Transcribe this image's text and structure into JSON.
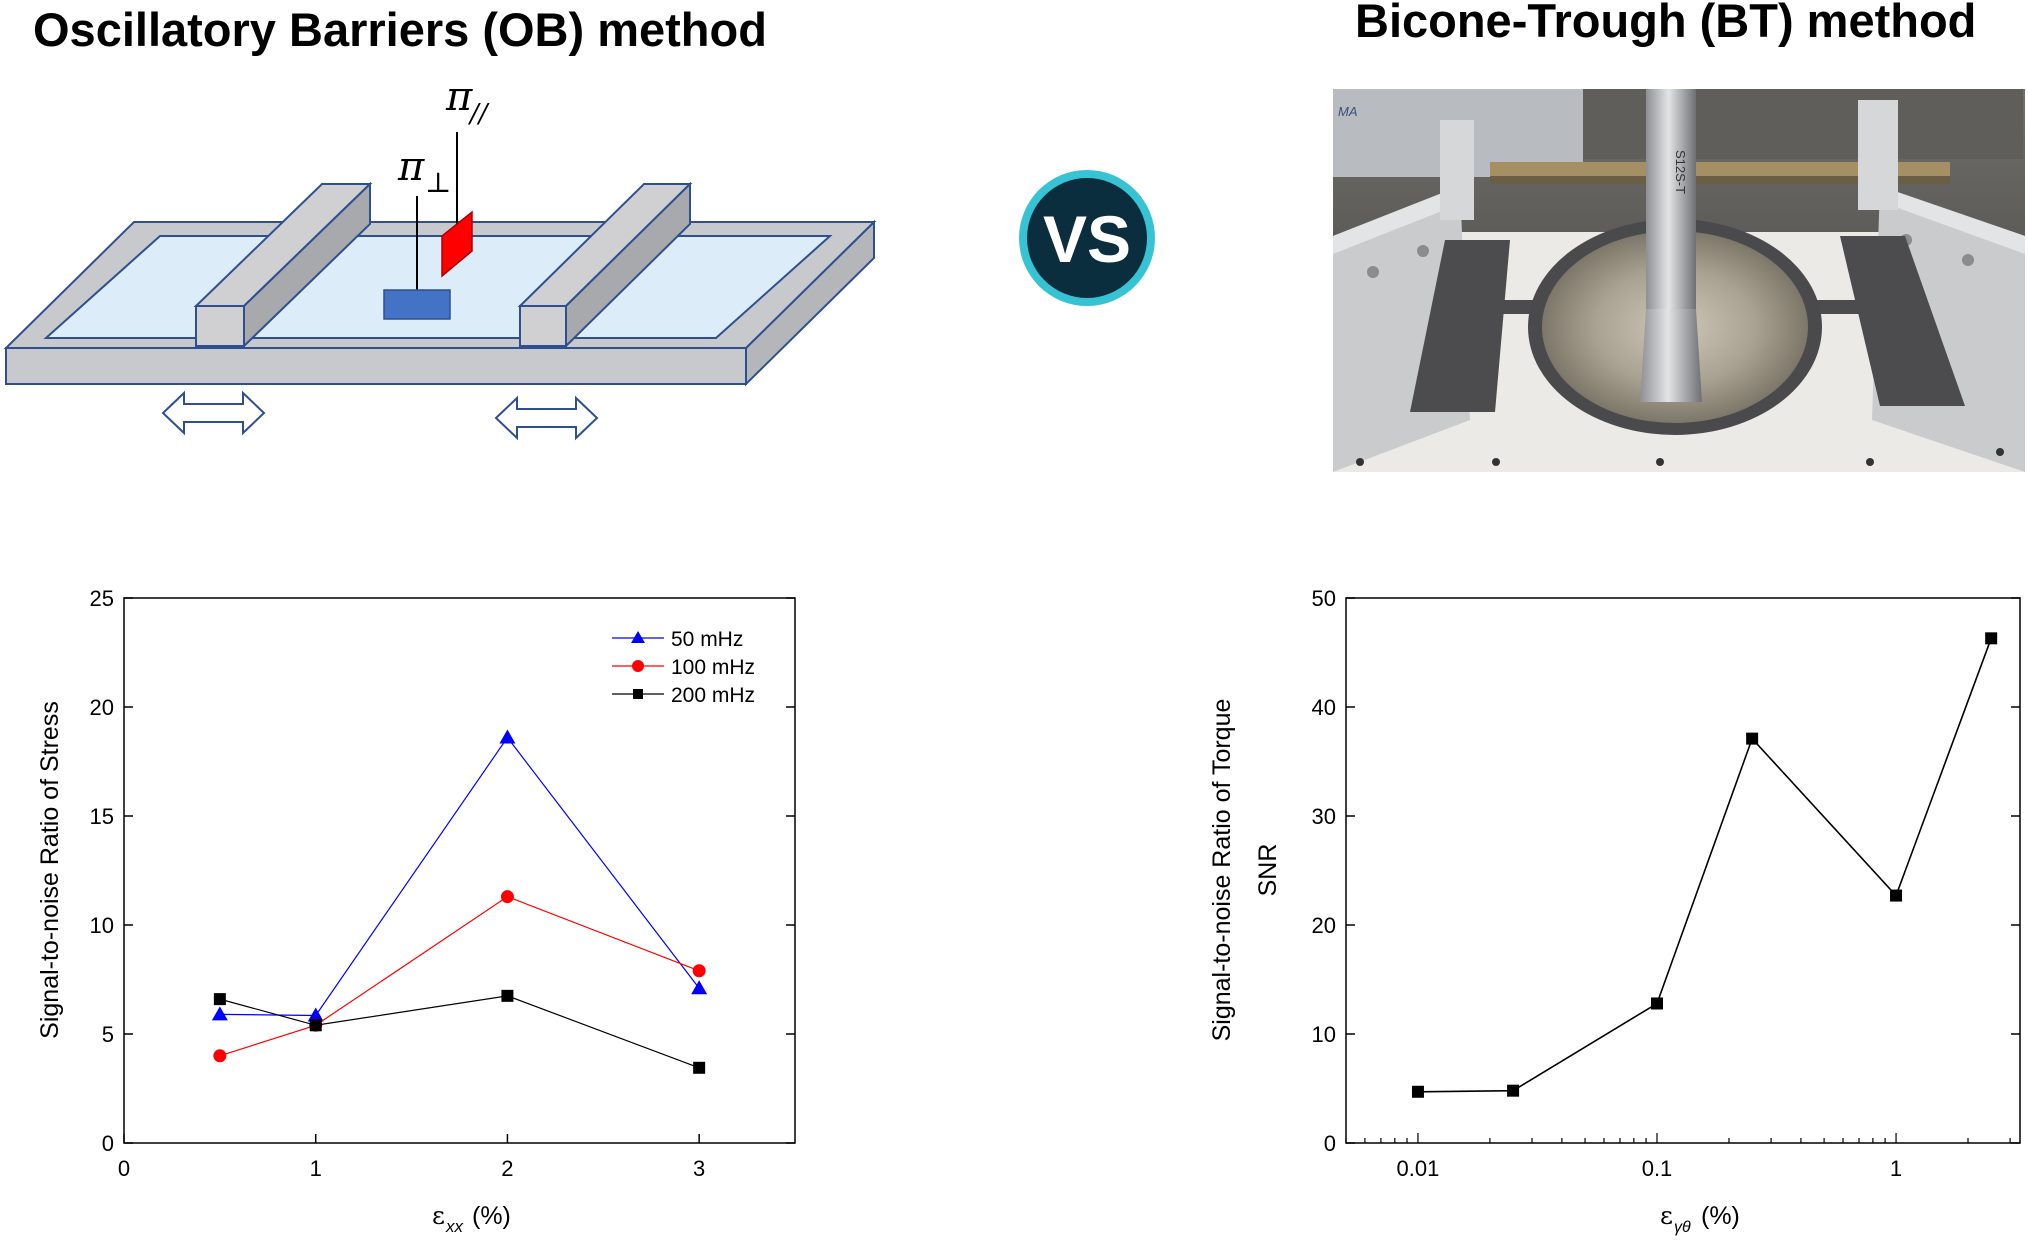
{
  "header": {
    "left_title": "Oscillatory Barriers (OB) method",
    "right_title": "Bicone-Trough (BT) method",
    "vs_badge": "VS"
  },
  "diagram": {
    "pi_parallel_label": "π",
    "pi_parallel_sub": "//",
    "pi_perp_label": "π",
    "pi_perp_sub": "⊥",
    "colors": {
      "trough": "#c8c9cd",
      "water": "#dcecf8",
      "outline": "#2f4f90",
      "plate": "#4472c4",
      "plate_red": "#ff0000"
    }
  },
  "photo": {
    "label_text": "MA",
    "probe_text": "S12S-T"
  },
  "colors": {
    "vs_fill": "#0b2e3f",
    "vs_ring": "#36c3d4",
    "series_50": "#0000ff",
    "series_100": "#ff0000",
    "series_200": "#000000"
  },
  "chart_data": [
    {
      "type": "line",
      "title": "",
      "xlabel": "ε",
      "xlabel_sub": "xx",
      "xlabel_unit": "(%)",
      "ylabel": "Signal-to-noise Ratio of Stress",
      "xlim": [
        0,
        3.5
      ],
      "ylim": [
        0,
        25
      ],
      "xticks": [
        "0",
        "1",
        "2",
        "3"
      ],
      "yticks": [
        "0",
        "5",
        "10",
        "15",
        "20",
        "25"
      ],
      "legend_position": "top-right",
      "grid": false,
      "x": [
        0.5,
        1,
        2,
        3
      ],
      "series": [
        {
          "name": "50 mHz",
          "marker": "triangle",
          "color": "#0000ff",
          "values": [
            5.9,
            5.85,
            18.6,
            7.1
          ]
        },
        {
          "name": "100 mHz",
          "marker": "circle",
          "color": "#ff0000",
          "values": [
            4.0,
            5.4,
            11.3,
            7.9
          ]
        },
        {
          "name": "200 mHz",
          "marker": "square",
          "color": "#000000",
          "values": [
            6.6,
            5.4,
            6.75,
            3.45
          ]
        }
      ]
    },
    {
      "type": "line",
      "title": "",
      "xscale": "log",
      "xlabel": "ε",
      "xlabel_sub": "γθ",
      "xlabel_unit": "(%)",
      "ylabel": "Signal-to-noise Ratio of Torque",
      "ylabel2": "SNR",
      "xlim": [
        0.005,
        3.3
      ],
      "ylim": [
        0,
        50
      ],
      "xticks": [
        "0.01",
        "0.1",
        "1"
      ],
      "yticks": [
        "0",
        "10",
        "20",
        "30",
        "40",
        "50"
      ],
      "grid": false,
      "x": [
        0.01,
        0.025,
        0.1,
        0.25,
        1,
        2.5
      ],
      "series": [
        {
          "marker": "square",
          "color": "#000000",
          "values": [
            4.7,
            4.8,
            12.8,
            37.1,
            22.7,
            46.3
          ]
        }
      ]
    }
  ]
}
